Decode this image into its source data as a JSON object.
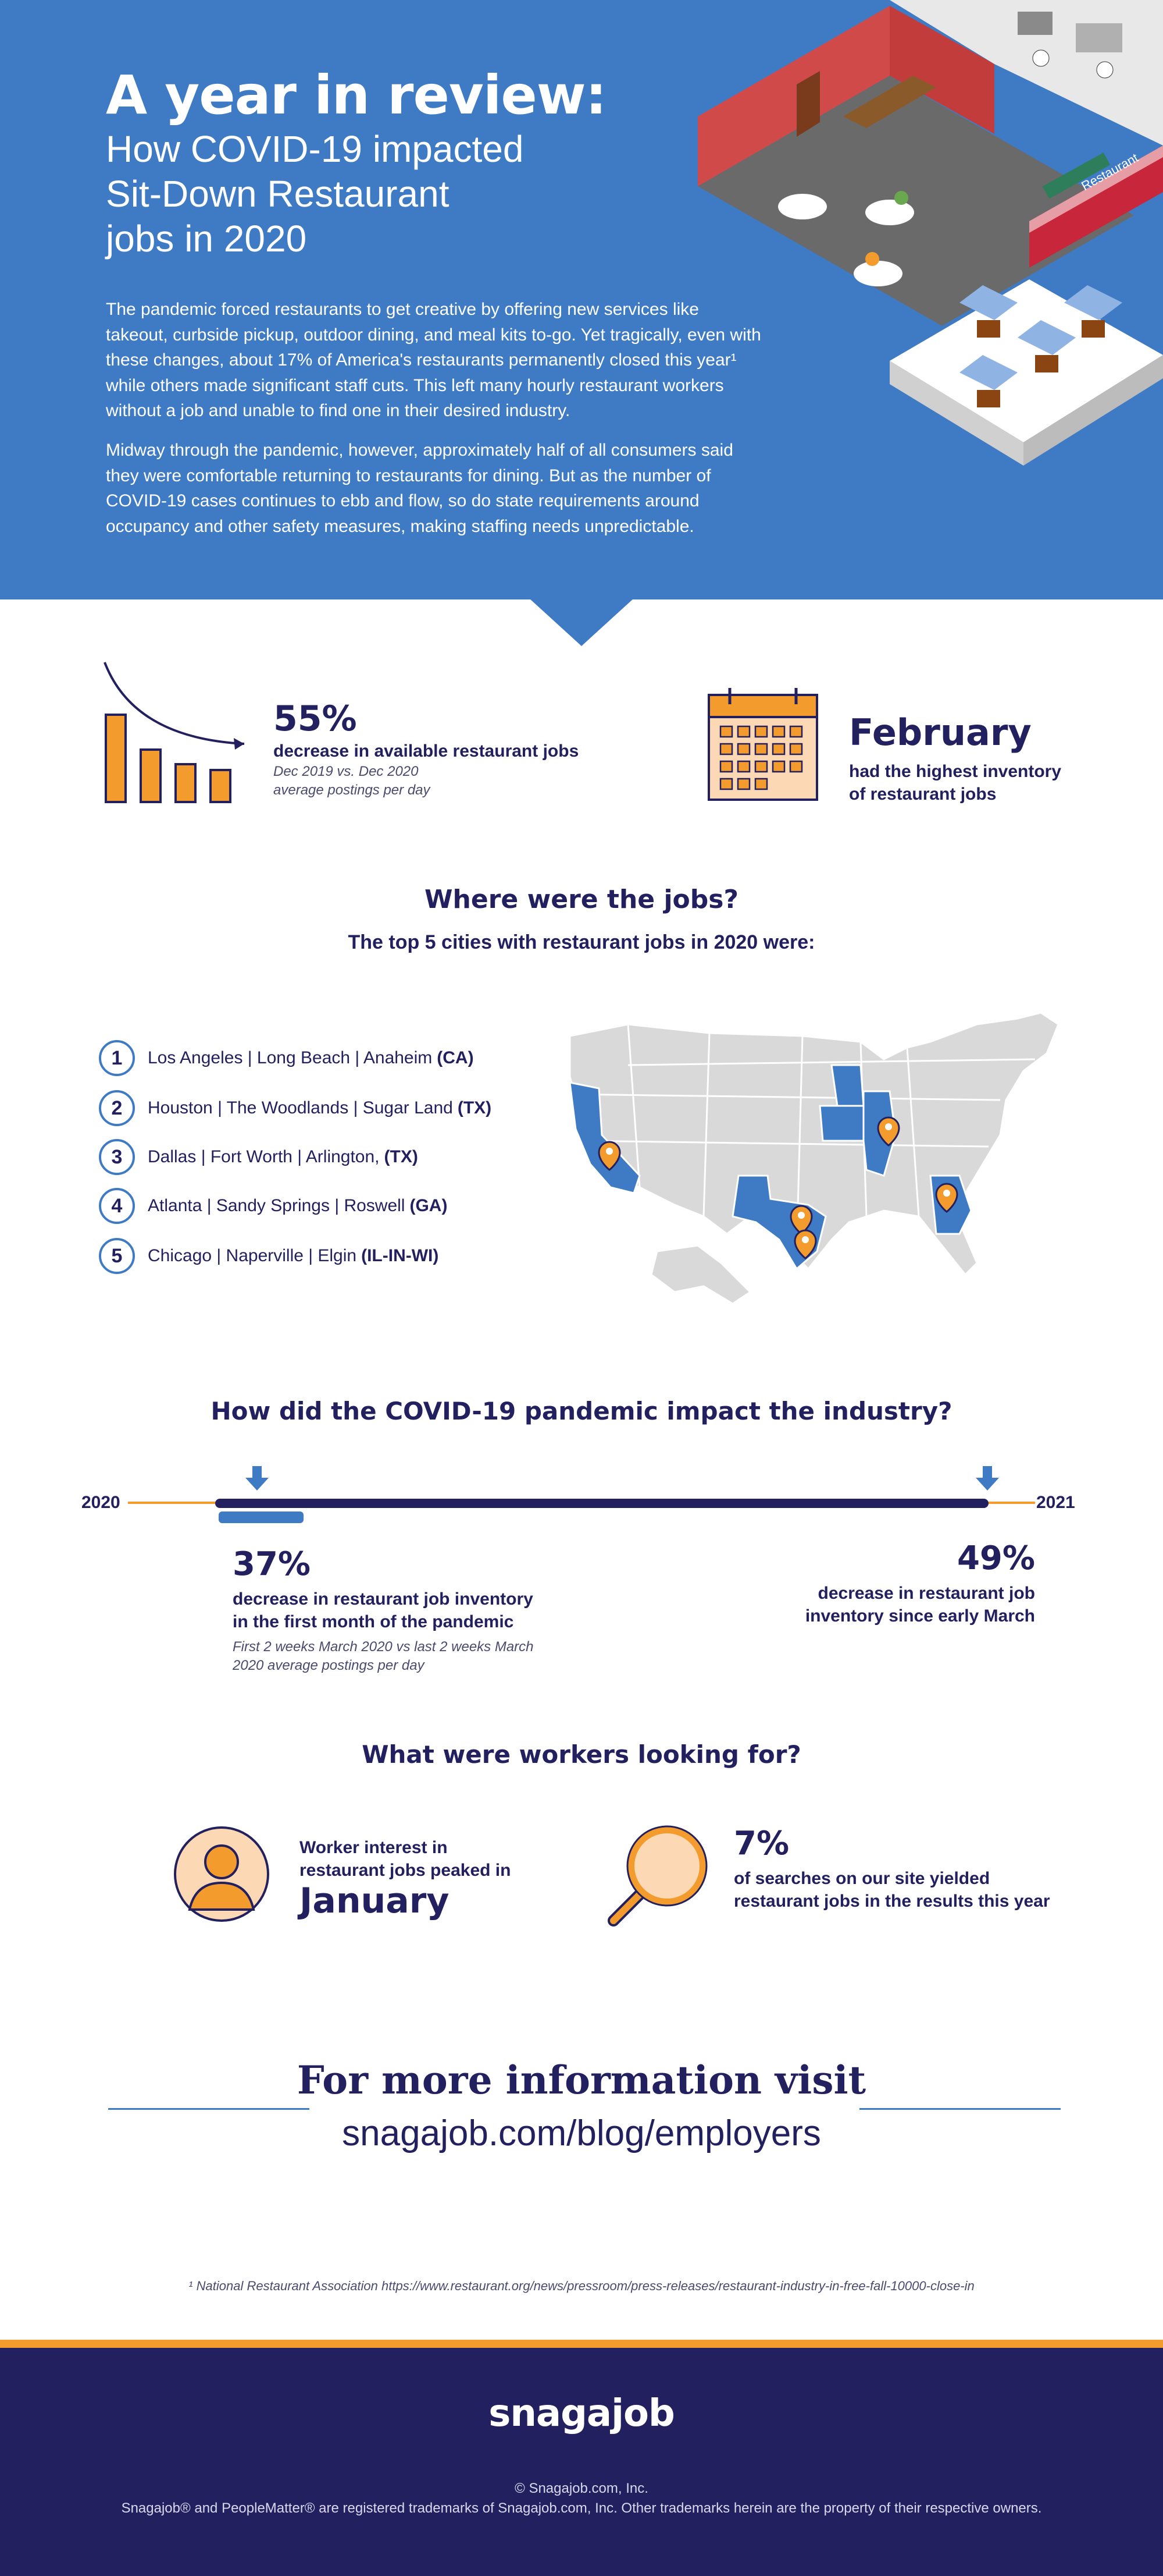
{
  "hero": {
    "title": "A year in review:",
    "subtitle_lines": [
      "How COVID-19 impacted",
      "Sit-Down Restaurant",
      "jobs in 2020"
    ],
    "paragraph1": "The pandemic forced restaurants to get creative by offering new services like takeout, curbside pickup, outdoor dining, and meal kits to-go. Yet tragically, even with these changes, about 17% of America's restaurants permanently closed this year¹ while others made significant staff cuts. This left many hourly restaurant workers without a job and unable to find one in their desired industry.",
    "paragraph2": "Midway through the pandemic, however, approximately half of all consumers said they were comfortable returning to restaurants for dining. But as the number of COVID-19 cases continues to ebb and flow, so do state requirements around occupancy and other safety measures, making staffing needs unpredictable.",
    "illustration_sign": "Restaurant"
  },
  "stats": {
    "decrease": {
      "value": "55%",
      "label": "decrease in available restaurant jobs",
      "note_line1": "Dec 2019 vs. Dec 2020",
      "note_line2": "average postings per day"
    },
    "peak_month": {
      "value": "February",
      "label_line1": "had the highest inventory",
      "label_line2": "of restaurant jobs"
    }
  },
  "where": {
    "heading": "Where were the jobs?",
    "subheading": "The top 5 cities with restaurant jobs in 2020 were:",
    "cities": [
      {
        "num": "1",
        "name": "Los Angeles | Long Beach | Anaheim",
        "state": "(CA)"
      },
      {
        "num": "2",
        "name": "Houston | The Woodlands | Sugar Land",
        "state": "(TX)"
      },
      {
        "num": "3",
        "name": "Dallas | Fort Worth | Arlington,",
        "state": "(TX)"
      },
      {
        "num": "4",
        "name": "Atlanta | Sandy Springs | Roswell",
        "state": "(GA)"
      },
      {
        "num": "5",
        "name": "Chicago | Naperville | Elgin",
        "state": "(IL-IN-WI)"
      }
    ]
  },
  "impact": {
    "heading": "How did the COVID-19 pandemic impact the industry?",
    "year_start": "2020",
    "year_end": "2021",
    "left": {
      "value": "37%",
      "label_line1": "decrease in restaurant job inventory",
      "label_line2": "in the first month of the pandemic",
      "note_line1": "First 2 weeks March 2020 vs last 2 weeks March",
      "note_line2": "2020 average postings per day"
    },
    "right": {
      "value": "49%",
      "label_line1": "decrease in restaurant job",
      "label_line2": "inventory since early March"
    }
  },
  "workers": {
    "heading": "What were workers looking for?",
    "interest": {
      "line1": "Worker interest in",
      "line2": "restaurant jobs peaked in",
      "month": "January"
    },
    "searches": {
      "value": "7%",
      "line1": "of searches on our site yielded",
      "line2": "restaurant jobs in the results this year"
    }
  },
  "more": {
    "heading": "For more information visit",
    "url": "snagajob.com/blog/employers"
  },
  "footnote": "¹ National Restaurant Association https://www.restaurant.org/news/pressroom/press-releases/restaurant-industry-in-free-fall-10000-close-in",
  "footer": {
    "logo": "snagajob",
    "copyright": "© Snagajob.com, Inc.",
    "trademark": "Snagajob® and PeopleMatter® are registered trademarks of Snagajob.com, Inc. Other trademarks herein are the property of their respective owners."
  },
  "colors": {
    "blue": "#3f7bc4",
    "navy": "#23205f",
    "orange": "#f39b2c",
    "peach": "#fcd8b4"
  }
}
